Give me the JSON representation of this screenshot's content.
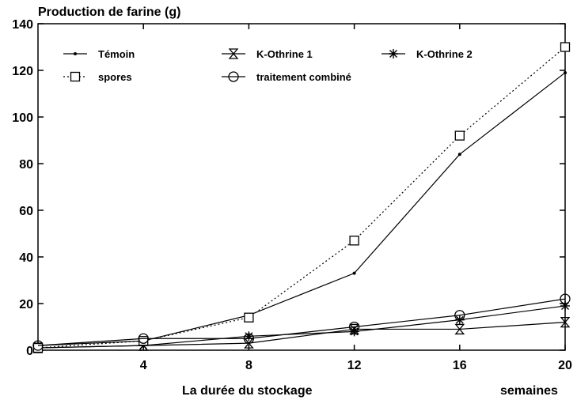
{
  "chart_data": {
    "type": "line",
    "title": "",
    "ylabel": "Production de farine (g)",
    "xlabel": "La durée du stockage",
    "xunit": "semaines",
    "x": [
      0,
      4,
      8,
      12,
      16,
      20
    ],
    "xlim": [
      0,
      20
    ],
    "ylim": [
      0,
      140
    ],
    "xticks": [
      4,
      8,
      12,
      16,
      20
    ],
    "yticks": [
      0,
      20,
      40,
      60,
      80,
      100,
      120,
      140
    ],
    "grid": false,
    "legend_position": "top",
    "series": [
      {
        "name": "Témoin",
        "marker": "dot",
        "dash": "solid",
        "values": [
          2,
          4,
          15,
          33,
          84,
          119
        ]
      },
      {
        "name": "K-Othrine 1",
        "marker": "hourglass",
        "dash": "solid",
        "values": [
          1,
          2,
          3,
          9,
          9,
          12
        ]
      },
      {
        "name": "K-Othrine 2",
        "marker": "asterisk",
        "dash": "solid",
        "values": [
          1,
          2,
          6,
          8,
          13,
          19
        ]
      },
      {
        "name": "spores",
        "marker": "square",
        "dash": "dotted",
        "values": [
          1,
          4,
          14,
          47,
          92,
          130
        ]
      },
      {
        "name": "traitement combiné",
        "marker": "circle",
        "dash": "solid",
        "values": [
          2,
          5,
          5,
          10,
          15,
          22
        ]
      }
    ]
  }
}
